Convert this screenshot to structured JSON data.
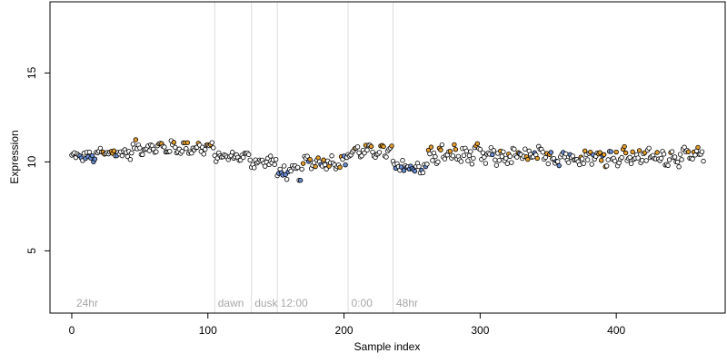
{
  "chart_data": {
    "type": "scatter",
    "title": "",
    "xlabel": "Sample index",
    "ylabel": "Expression",
    "xlim": [
      -16,
      480
    ],
    "ylim": [
      1.5,
      19
    ],
    "xticks": [
      0,
      100,
      200,
      300,
      400
    ],
    "yticks": [
      5,
      10,
      15
    ],
    "grid": false,
    "legend": "none",
    "colors": {
      "orange": "#e8a02c",
      "blue": "#6b8fd6",
      "white": "#ffffff",
      "vline": "#dcdcdc",
      "annot": "#a8a8a8"
    },
    "annotations": [
      {
        "label": "24hr",
        "x": 2
      },
      {
        "label": "dawn",
        "x": 106
      },
      {
        "label": "dusk",
        "x": 133
      },
      {
        "label": "12:00",
        "x": 152
      },
      {
        "label": "0:00",
        "x": 204
      },
      {
        "label": "48hr",
        "x": 237
      }
    ],
    "vlines": [
      105,
      132,
      151,
      203,
      236
    ],
    "segments": [
      {
        "start": 0,
        "end": 20,
        "base": 10.3,
        "amp": 0.25,
        "color_mode": "blue-low"
      },
      {
        "start": 20,
        "end": 45,
        "base": 10.5,
        "amp": 0.25,
        "color_mode": "mixed"
      },
      {
        "start": 45,
        "end": 70,
        "base": 10.8,
        "amp": 0.3,
        "color_mode": "orange-high"
      },
      {
        "start": 70,
        "end": 105,
        "base": 10.8,
        "amp": 0.3,
        "color_mode": "orange-high"
      },
      {
        "start": 105,
        "end": 132,
        "base": 10.3,
        "amp": 0.2,
        "color_mode": "white"
      },
      {
        "start": 132,
        "end": 151,
        "base": 10.0,
        "amp": 0.3,
        "color_mode": "white"
      },
      {
        "start": 151,
        "end": 170,
        "base": 9.4,
        "amp": 0.35,
        "color_mode": "blue-low"
      },
      {
        "start": 170,
        "end": 203,
        "base": 10.0,
        "amp": 0.3,
        "color_mode": "mixed"
      },
      {
        "start": 203,
        "end": 236,
        "base": 10.6,
        "amp": 0.3,
        "color_mode": "orange-high"
      },
      {
        "start": 236,
        "end": 262,
        "base": 9.7,
        "amp": 0.35,
        "color_mode": "blue-low"
      },
      {
        "start": 262,
        "end": 300,
        "base": 10.4,
        "amp": 0.45,
        "color_mode": "orange-high"
      },
      {
        "start": 300,
        "end": 400,
        "base": 10.3,
        "amp": 0.4,
        "color_mode": "mixed"
      },
      {
        "start": 400,
        "end": 465,
        "base": 10.3,
        "amp": 0.4,
        "color_mode": "orange-high"
      }
    ]
  }
}
